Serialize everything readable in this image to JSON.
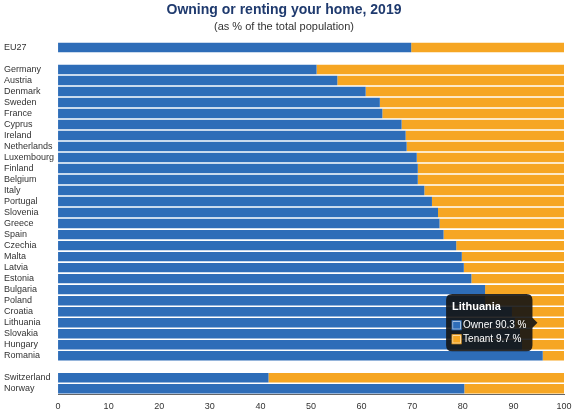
{
  "chart_data": {
    "type": "bar",
    "title": "Owning or renting your home, 2019",
    "subtitle": "(as % of the total population)",
    "orientation": "horizontal",
    "stacked": true,
    "grid": false,
    "categories": [
      "EU27",
      null,
      "Germany",
      "Austria",
      "Denmark",
      "Sweden",
      "France",
      "Cyprus",
      "Ireland",
      "Netherlands",
      "Luxembourg",
      "Finland",
      "Belgium",
      "Italy",
      "Portugal",
      "Slovenia",
      "Greece",
      "Spain",
      "Czechia",
      "Malta",
      "Latvia",
      "Estonia",
      "Bulgaria",
      "Poland",
      "Croatia",
      "Lithuania",
      "Slovakia",
      "Hungary",
      "Romania",
      null,
      "Switzerland",
      "Norway"
    ],
    "series": [
      {
        "name": "Owner",
        "color": "#2e6db8",
        "values": [
          69.8,
          null,
          51.1,
          55.2,
          60.8,
          63.6,
          64.1,
          67.9,
          68.7,
          68.9,
          70.9,
          71.1,
          71.1,
          72.4,
          73.9,
          75.1,
          75.4,
          76.2,
          78.7,
          79.8,
          80.2,
          81.7,
          84.4,
          84.4,
          89.7,
          90.3,
          91.3,
          91.7,
          95.8,
          null,
          41.6,
          80.3
        ]
      },
      {
        "name": "Tenant",
        "color": "#f6a623",
        "values": [
          30.2,
          null,
          48.9,
          44.8,
          39.2,
          36.4,
          35.9,
          32.1,
          31.3,
          31.1,
          29.1,
          28.9,
          28.9,
          27.6,
          26.1,
          24.9,
          24.6,
          23.8,
          21.3,
          20.2,
          19.8,
          18.3,
          15.6,
          15.6,
          10.3,
          9.7,
          8.7,
          8.3,
          4.2,
          null,
          58.4,
          19.7
        ]
      }
    ],
    "xlim": [
      0,
      100
    ],
    "xticks": [
      0,
      10,
      20,
      30,
      40,
      50,
      60,
      70,
      80,
      90,
      100
    ],
    "annotations": [
      {
        "category": "Lithuania",
        "title": "Lithuania",
        "lines": [
          "Owner 90.3 %",
          "Tenant 9.7 %"
        ]
      }
    ]
  }
}
